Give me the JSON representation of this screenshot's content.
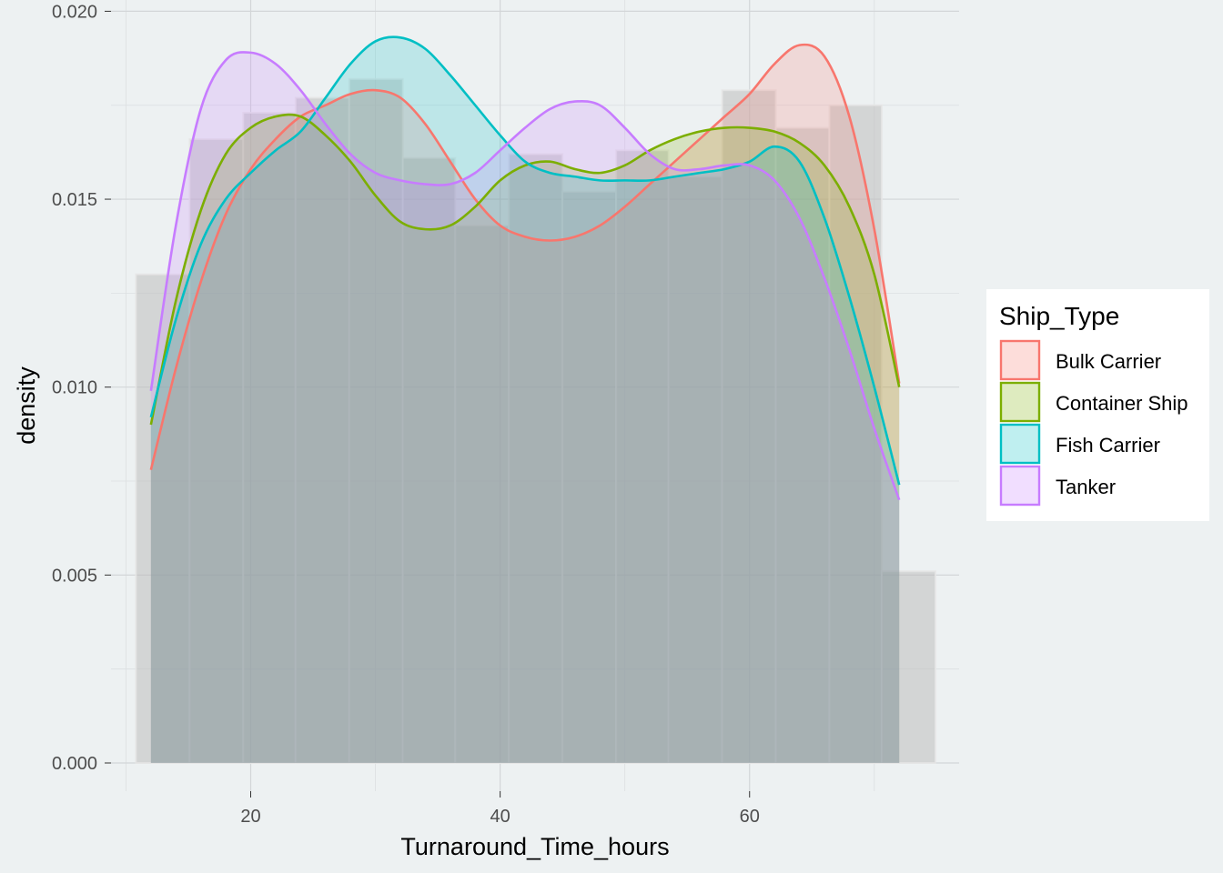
{
  "chart_data": {
    "type": "area",
    "subtype": "density-over-histogram",
    "title": "",
    "xlabel": "Turnaround_Time_hours",
    "ylabel": "density",
    "xlim": [
      8.8,
      76.8
    ],
    "ylim": [
      -0.00075,
      0.0203
    ],
    "x_ticks": [
      20,
      40,
      60
    ],
    "x_tick_labels": [
      "20",
      "40",
      "60"
    ],
    "y_ticks": [
      0.0,
      0.005,
      0.01,
      0.015,
      0.02
    ],
    "y_tick_labels": [
      "0.000",
      "0.005",
      "0.010",
      "0.015",
      "0.020"
    ],
    "grid": true,
    "legend": {
      "title": "Ship_Type",
      "position": "right"
    },
    "histogram": {
      "color": "#BEBEBE",
      "bins": [
        {
          "x0": 10.8,
          "x1": 15.1,
          "value": 0.013
        },
        {
          "x0": 15.1,
          "x1": 19.4,
          "value": 0.0166
        },
        {
          "x0": 19.4,
          "x1": 23.6,
          "value": 0.0173
        },
        {
          "x0": 23.6,
          "x1": 27.9,
          "value": 0.0177
        },
        {
          "x0": 27.9,
          "x1": 32.2,
          "value": 0.0182
        },
        {
          "x0": 32.2,
          "x1": 36.4,
          "value": 0.0161
        },
        {
          "x0": 36.4,
          "x1": 40.7,
          "value": 0.0143
        },
        {
          "x0": 40.7,
          "x1": 45.0,
          "value": 0.0162
        },
        {
          "x0": 45.0,
          "x1": 49.3,
          "value": 0.0152
        },
        {
          "x0": 49.3,
          "x1": 53.5,
          "value": 0.0163
        },
        {
          "x0": 53.5,
          "x1": 57.8,
          "value": 0.0156
        },
        {
          "x0": 57.8,
          "x1": 62.1,
          "value": 0.0179
        },
        {
          "x0": 62.1,
          "x1": 66.4,
          "value": 0.0169
        },
        {
          "x0": 66.4,
          "x1": 70.6,
          "value": 0.0175
        },
        {
          "x0": 70.6,
          "x1": 74.9,
          "value": 0.0051
        }
      ]
    },
    "x": [
      12,
      14,
      16,
      18,
      20,
      22,
      24,
      26,
      28,
      30,
      32,
      34,
      36,
      38,
      40,
      42,
      44,
      46,
      48,
      50,
      52,
      54,
      56,
      58,
      60,
      62,
      64,
      66,
      68,
      70,
      72
    ],
    "series": [
      {
        "name": "Bulk Carrier",
        "color": "#F8766D",
        "values": [
          0.0078,
          0.0105,
          0.0128,
          0.0146,
          0.0158,
          0.0166,
          0.0172,
          0.0175,
          0.0178,
          0.0179,
          0.0177,
          0.017,
          0.016,
          0.015,
          0.0143,
          0.014,
          0.0139,
          0.014,
          0.0143,
          0.0148,
          0.0154,
          0.016,
          0.0166,
          0.0172,
          0.0178,
          0.0186,
          0.0191,
          0.0188,
          0.0172,
          0.0142,
          0.0101
        ]
      },
      {
        "name": "Container Ship",
        "color": "#7CAE00",
        "values": [
          0.009,
          0.0123,
          0.0147,
          0.0162,
          0.0169,
          0.0172,
          0.0172,
          0.0167,
          0.016,
          0.0151,
          0.0144,
          0.0142,
          0.0143,
          0.0148,
          0.0155,
          0.0159,
          0.016,
          0.0158,
          0.0157,
          0.0159,
          0.0163,
          0.0166,
          0.0168,
          0.0169,
          0.0169,
          0.0168,
          0.0165,
          0.0159,
          0.0148,
          0.013,
          0.01
        ]
      },
      {
        "name": "Fish Carrier",
        "color": "#00BFC4",
        "values": [
          0.0092,
          0.0118,
          0.0138,
          0.015,
          0.0157,
          0.0163,
          0.0168,
          0.0177,
          0.0186,
          0.0192,
          0.0193,
          0.019,
          0.0183,
          0.0175,
          0.0167,
          0.016,
          0.0157,
          0.0156,
          0.0155,
          0.0155,
          0.0155,
          0.0156,
          0.0157,
          0.0158,
          0.016,
          0.0164,
          0.016,
          0.0145,
          0.0124,
          0.01,
          0.0074
        ]
      },
      {
        "name": "Tanker",
        "color": "#C77CFF",
        "values": [
          0.0099,
          0.0143,
          0.0174,
          0.0187,
          0.0189,
          0.0186,
          0.0179,
          0.017,
          0.0162,
          0.0157,
          0.0155,
          0.0154,
          0.0154,
          0.0157,
          0.0163,
          0.0169,
          0.0174,
          0.0176,
          0.0175,
          0.0169,
          0.0162,
          0.0158,
          0.0158,
          0.0159,
          0.0159,
          0.0155,
          0.0145,
          0.0129,
          0.011,
          0.0089,
          0.007
        ]
      }
    ]
  }
}
